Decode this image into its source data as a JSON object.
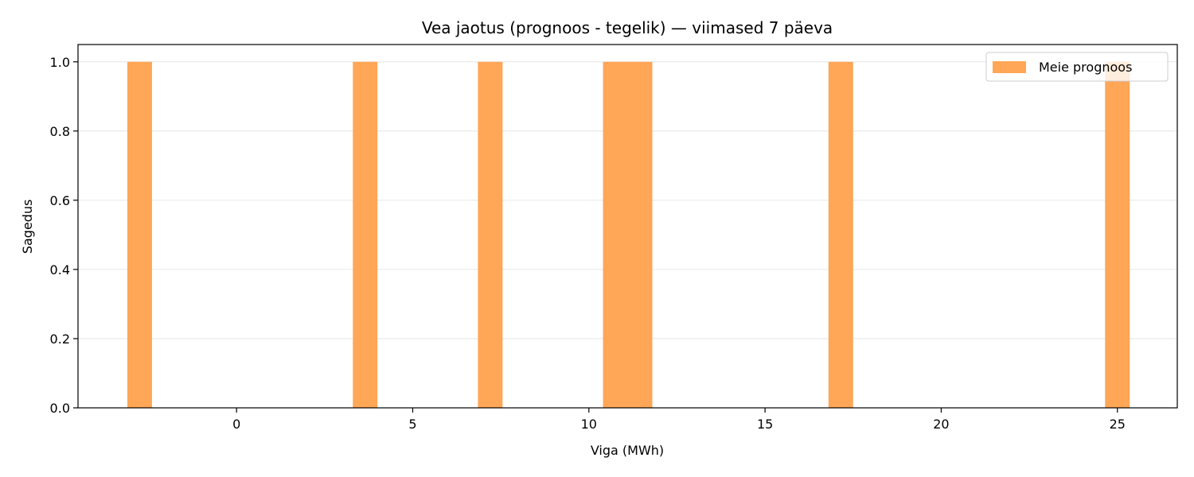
{
  "chart_data": {
    "type": "bar",
    "title": "Vea jaotus (prognoos - tegelik) — viimased 7 päeva",
    "xlabel": "Viga (MWh)",
    "ylabel": "Sagedus",
    "xlim": [
      -4.5,
      26.7
    ],
    "ylim": [
      0,
      1.05
    ],
    "x_ticks": [
      0,
      5,
      10,
      15,
      20,
      25
    ],
    "y_ticks": [
      0.0,
      0.2,
      0.4,
      0.6,
      0.8,
      1.0
    ],
    "x_tick_labels": [
      "0",
      "5",
      "10",
      "15",
      "20",
      "25"
    ],
    "y_tick_labels": [
      "0.0",
      "0.2",
      "0.4",
      "0.6",
      "0.8",
      "1.0"
    ],
    "grid": "y",
    "legend_position": "top-right",
    "bar_color": "#ffa657",
    "series": [
      {
        "name": "Meie prognoos",
        "bins": [
          {
            "x0": -3.1,
            "x1": -2.4,
            "value": 1
          },
          {
            "x0": 3.3,
            "x1": 4.0,
            "value": 1
          },
          {
            "x0": 6.85,
            "x1": 7.55,
            "value": 1
          },
          {
            "x0": 10.4,
            "x1": 11.1,
            "value": 1
          },
          {
            "x0": 11.1,
            "x1": 11.8,
            "value": 1
          },
          {
            "x0": 16.8,
            "x1": 17.5,
            "value": 1
          },
          {
            "x0": 24.65,
            "x1": 25.35,
            "value": 1
          }
        ]
      }
    ]
  }
}
